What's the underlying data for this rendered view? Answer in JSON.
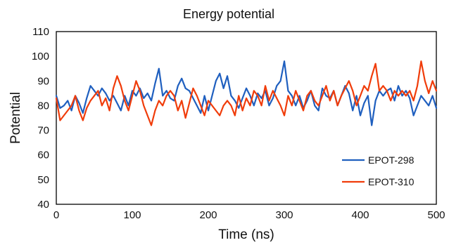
{
  "chart_data": {
    "type": "line",
    "title": "Energy potential",
    "xlabel": "Time (ns)",
    "ylabel": "Potential",
    "xlim": [
      0,
      500
    ],
    "ylim": [
      40,
      110
    ],
    "xticks": [
      0,
      100,
      200,
      300,
      400,
      500
    ],
    "yticks": [
      40,
      50,
      60,
      70,
      80,
      90,
      100,
      110
    ],
    "grid": false,
    "legend_position": "bottom-right",
    "series": [
      {
        "name": "EPOT-298",
        "color": "#1f5fbf",
        "x": [
          0,
          5,
          10,
          15,
          20,
          25,
          30,
          35,
          40,
          45,
          50,
          55,
          60,
          65,
          70,
          75,
          80,
          85,
          90,
          95,
          100,
          105,
          110,
          115,
          120,
          125,
          130,
          135,
          140,
          145,
          150,
          155,
          160,
          165,
          170,
          175,
          180,
          185,
          190,
          195,
          200,
          205,
          210,
          215,
          220,
          225,
          230,
          235,
          240,
          245,
          250,
          255,
          260,
          265,
          270,
          275,
          280,
          285,
          290,
          295,
          300,
          305,
          310,
          315,
          320,
          325,
          330,
          335,
          340,
          345,
          350,
          355,
          360,
          365,
          370,
          375,
          380,
          385,
          390,
          395,
          400,
          405,
          410,
          415,
          420,
          425,
          430,
          435,
          440,
          445,
          450,
          455,
          460,
          465,
          470,
          475,
          480,
          485,
          490,
          495,
          500
        ],
        "y": [
          84,
          79,
          80,
          82,
          78,
          84,
          81,
          77,
          83,
          88,
          86,
          84,
          87,
          85,
          82,
          84,
          81,
          78,
          84,
          80,
          86,
          84,
          87,
          83,
          85,
          82,
          89,
          95,
          84,
          86,
          83,
          82,
          88,
          91,
          87,
          86,
          83,
          80,
          77,
          84,
          78,
          84,
          90,
          93,
          87,
          92,
          84,
          82,
          79,
          83,
          87,
          84,
          80,
          85,
          83,
          86,
          80,
          83,
          88,
          90,
          98,
          86,
          84,
          80,
          84,
          79,
          82,
          86,
          80,
          78,
          87,
          84,
          83,
          86,
          80,
          84,
          88,
          85,
          78,
          84,
          76,
          81,
          84,
          72,
          82,
          86,
          84,
          86,
          87,
          82,
          88,
          84,
          86,
          83,
          76,
          80,
          84,
          82,
          80,
          84,
          79
        ]
      },
      {
        "name": "EPOT-310",
        "color": "#f03c0a",
        "x": [
          0,
          5,
          10,
          15,
          20,
          25,
          30,
          35,
          40,
          45,
          50,
          55,
          60,
          65,
          70,
          75,
          80,
          85,
          90,
          95,
          100,
          105,
          110,
          115,
          120,
          125,
          130,
          135,
          140,
          145,
          150,
          155,
          160,
          165,
          170,
          175,
          180,
          185,
          190,
          195,
          200,
          205,
          210,
          215,
          220,
          225,
          230,
          235,
          240,
          245,
          250,
          255,
          260,
          265,
          270,
          275,
          280,
          285,
          290,
          295,
          300,
          305,
          310,
          315,
          320,
          325,
          330,
          335,
          340,
          345,
          350,
          355,
          360,
          365,
          370,
          375,
          380,
          385,
          390,
          395,
          400,
          405,
          410,
          415,
          420,
          425,
          430,
          435,
          440,
          445,
          450,
          455,
          460,
          465,
          470,
          475,
          480,
          485,
          490,
          495,
          500
        ],
        "y": [
          83,
          74,
          76,
          78,
          80,
          84,
          78,
          74,
          79,
          82,
          84,
          86,
          80,
          83,
          78,
          87,
          92,
          88,
          82,
          78,
          84,
          90,
          86,
          80,
          76,
          72,
          78,
          82,
          80,
          84,
          86,
          84,
          78,
          82,
          75,
          81,
          87,
          84,
          80,
          76,
          82,
          80,
          78,
          76,
          80,
          82,
          80,
          76,
          84,
          78,
          83,
          80,
          86,
          84,
          80,
          88,
          82,
          86,
          83,
          80,
          76,
          84,
          80,
          86,
          82,
          78,
          84,
          86,
          82,
          80,
          84,
          88,
          82,
          86,
          80,
          84,
          87,
          90,
          86,
          80,
          84,
          88,
          86,
          92,
          97,
          86,
          88,
          86,
          82,
          86,
          84,
          86,
          84,
          86,
          82,
          88,
          98,
          90,
          85,
          90,
          86
        ]
      }
    ]
  }
}
